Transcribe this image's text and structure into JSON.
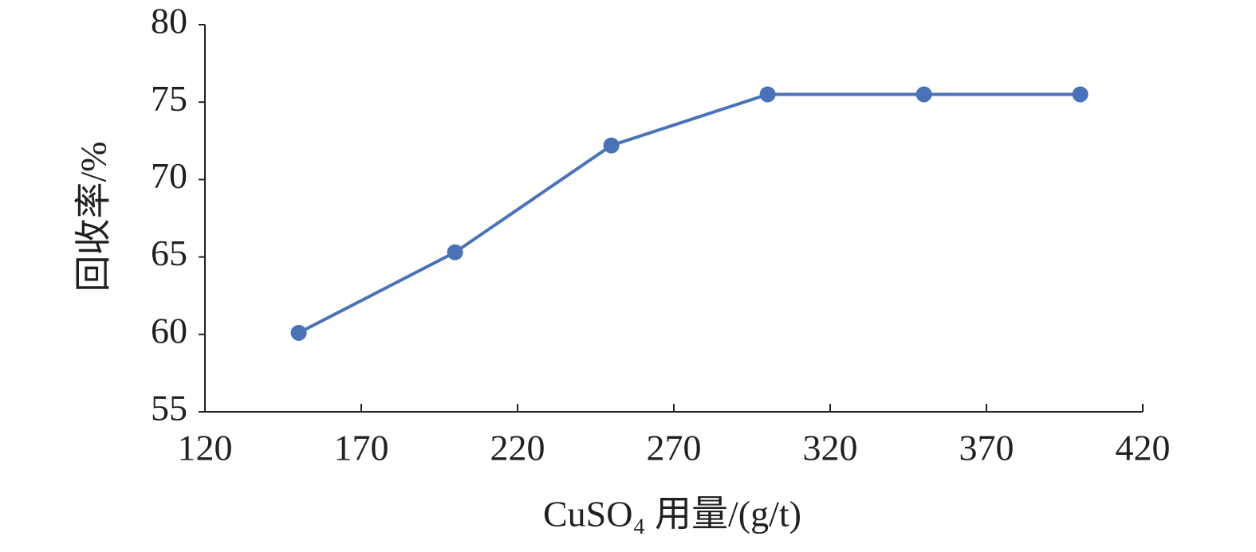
{
  "chart_data": {
    "type": "line",
    "x_label": "CuSO₄ 用量/(g/t)",
    "y_label": "回收率/%",
    "x": [
      150,
      200,
      250,
      300,
      350,
      400
    ],
    "series": [
      {
        "name": "回收率",
        "color": "#4a72b8",
        "values": [
          60.1,
          65.3,
          72.2,
          75.5,
          75.5,
          75.5
        ]
      }
    ],
    "xlim": [
      120,
      420
    ],
    "xticks": [
      120,
      170,
      220,
      270,
      320,
      370,
      420
    ],
    "ylim": [
      55,
      80
    ],
    "yticks": [
      55,
      60,
      65,
      70,
      75,
      80
    ],
    "grid": false,
    "markers": true
  }
}
